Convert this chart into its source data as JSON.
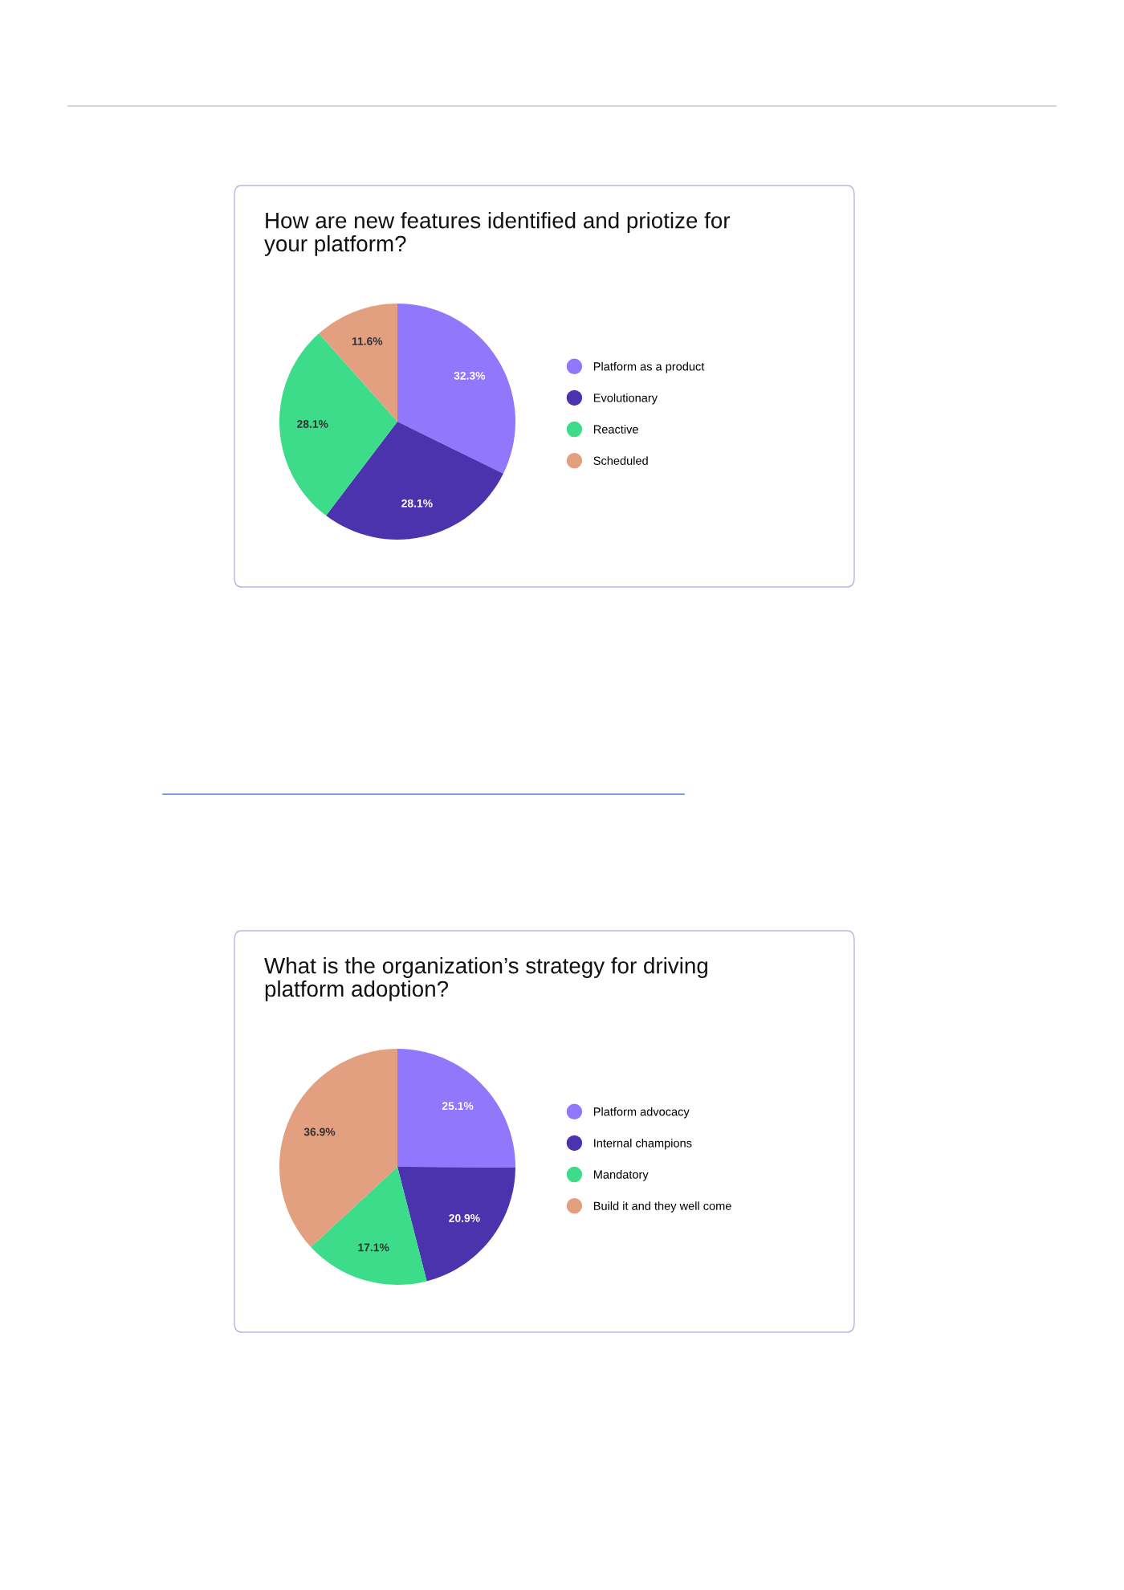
{
  "chart_data": [
    {
      "type": "pie",
      "title": "How are new features identified and priotize for your platform?",
      "categories": [
        "Platform as a product",
        "Evolutionary",
        "Reactive",
        "Scheduled"
      ],
      "values": [
        32.3,
        28.1,
        28.1,
        11.6
      ],
      "value_labels": [
        "32.3%",
        "28.1%",
        "28.1%",
        "11.6%"
      ],
      "colors": [
        "#9077fb",
        "#4b33ae",
        "#3ddc8a",
        "#e3a081"
      ],
      "legend": "right"
    },
    {
      "type": "pie",
      "title": "What is the organization’s strategy for driving platform adoption?",
      "categories": [
        "Platform advocacy",
        "Internal champions",
        "Mandatory",
        "Build it and they well come"
      ],
      "values": [
        25.1,
        20.9,
        17.1,
        36.9
      ],
      "value_labels": [
        "25.1%",
        "20.9%",
        "17.1%",
        "36.9%"
      ],
      "colors": [
        "#9077fb",
        "#4b33ae",
        "#3ddc8a",
        "#e3a081"
      ],
      "legend": "right"
    }
  ]
}
